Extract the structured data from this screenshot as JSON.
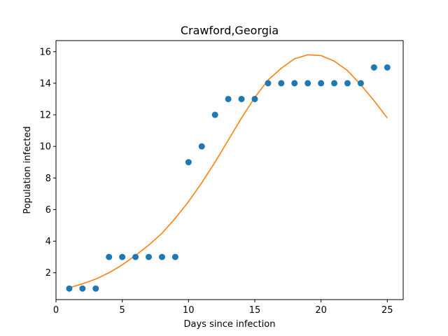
{
  "chart_data": {
    "type": "scatter",
    "title": "Crawford,Georgia",
    "xlabel": "Days since infection",
    "ylabel": "Population infected",
    "xlim": [
      0,
      26.2
    ],
    "ylim": [
      0.3,
      16.7
    ],
    "xticks": [
      0,
      5,
      10,
      15,
      20,
      25
    ],
    "yticks": [
      2,
      4,
      6,
      8,
      10,
      12,
      14,
      16
    ],
    "grid": false,
    "colors": {
      "points": "#1f77b4",
      "fit": "#ff7f0e"
    },
    "series": [
      {
        "kind": "scatter",
        "x": [
          1,
          2,
          3,
          4,
          5,
          6,
          7,
          8,
          9,
          10,
          11,
          12,
          13,
          14,
          15,
          16,
          17,
          18,
          19,
          20,
          21,
          22,
          23,
          24,
          25
        ],
        "y": [
          1,
          1,
          1,
          3,
          3,
          3,
          3,
          3,
          3,
          9,
          10,
          12,
          13,
          13,
          13,
          14,
          14,
          14,
          14,
          14,
          14,
          14,
          14,
          15,
          15
        ]
      },
      {
        "kind": "line",
        "x": [
          1,
          2,
          3,
          4,
          5,
          6,
          7,
          8,
          9,
          10,
          11,
          12,
          13,
          14,
          15,
          16,
          17,
          18,
          19,
          20,
          21,
          22,
          23,
          24,
          25
        ],
        "y": [
          1.05,
          1.3,
          1.6,
          2.0,
          2.5,
          3.1,
          3.75,
          4.5,
          5.45,
          6.5,
          7.7,
          9.0,
          10.4,
          11.8,
          13.1,
          14.2,
          14.95,
          15.55,
          15.8,
          15.75,
          15.4,
          14.8,
          13.9,
          12.9,
          11.8
        ]
      }
    ]
  }
}
